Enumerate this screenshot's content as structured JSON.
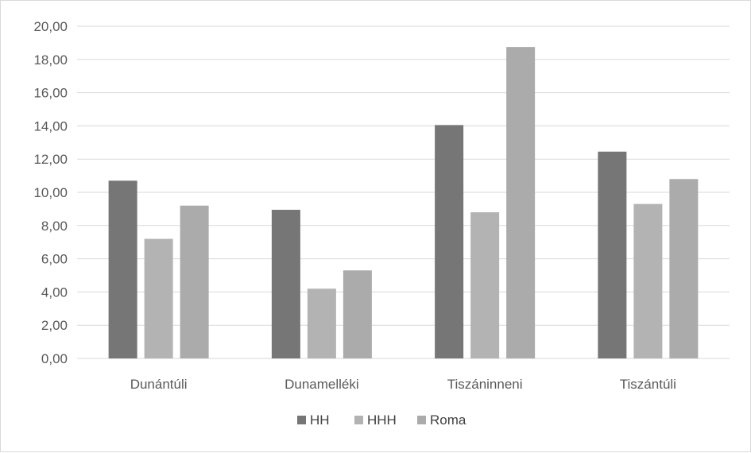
{
  "chart_data": {
    "type": "bar",
    "categories": [
      "Dunántúli",
      "Dunamelléki",
      "Tiszáninneni",
      "Tiszántúli"
    ],
    "series": [
      {
        "name": "HH",
        "values": [
          10.7,
          8.95,
          14.05,
          12.45
        ],
        "color": "#767676"
      },
      {
        "name": "HHH",
        "values": [
          7.2,
          4.2,
          8.8,
          9.3
        ],
        "color": "#b3b3b3"
      },
      {
        "name": "Roma",
        "values": [
          9.2,
          5.3,
          18.75,
          10.8
        ],
        "color": "#ababab"
      }
    ],
    "ylim": [
      0,
      20
    ],
    "yticks": [
      "0,00",
      "2,00",
      "4,00",
      "6,00",
      "8,00",
      "10,00",
      "12,00",
      "14,00",
      "16,00",
      "18,00",
      "20,00"
    ],
    "grid": true,
    "legend_position": "bottom",
    "gridline_color": "#d9d9d9"
  }
}
